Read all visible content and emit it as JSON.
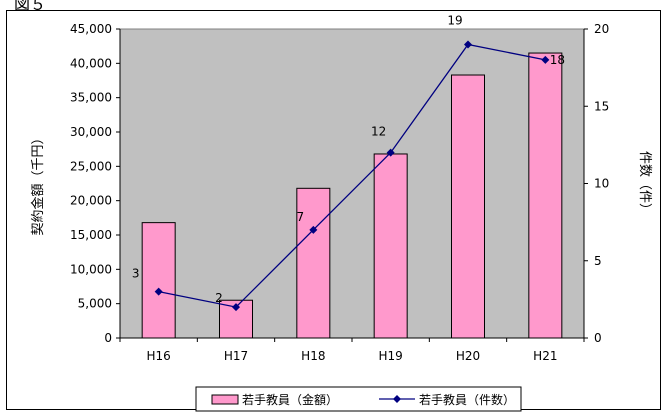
{
  "figure_label": "図５",
  "chart_data": {
    "type": "bar+line",
    "categories": [
      "H16",
      "H17",
      "H18",
      "H19",
      "H20",
      "H21"
    ],
    "series": [
      {
        "name": "若手教員（金額）",
        "type": "bar",
        "axis": "left",
        "values": [
          16800,
          5500,
          21800,
          26800,
          38300,
          41500
        ],
        "color": "#ff99cc"
      },
      {
        "name": "若手教員（件数）",
        "type": "line",
        "axis": "right",
        "values": [
          3,
          2,
          7,
          12,
          19,
          18
        ],
        "color": "#000080",
        "data_labels": [
          "3",
          "2",
          "7",
          "12",
          "19",
          "18"
        ]
      }
    ],
    "ylabel": "契約金額（千円）",
    "y2label": "件数（件）",
    "ylim": [
      0,
      45000
    ],
    "y2lim": [
      0,
      20
    ],
    "yticks": [
      "0",
      "5,000",
      "10,000",
      "15,000",
      "20,000",
      "25,000",
      "30,000",
      "35,000",
      "40,000",
      "45,000"
    ],
    "y2ticks": [
      "0",
      "5",
      "10",
      "15",
      "20"
    ],
    "plot_background": "#c0c0c0",
    "grid": false,
    "legend_position": "bottom"
  }
}
